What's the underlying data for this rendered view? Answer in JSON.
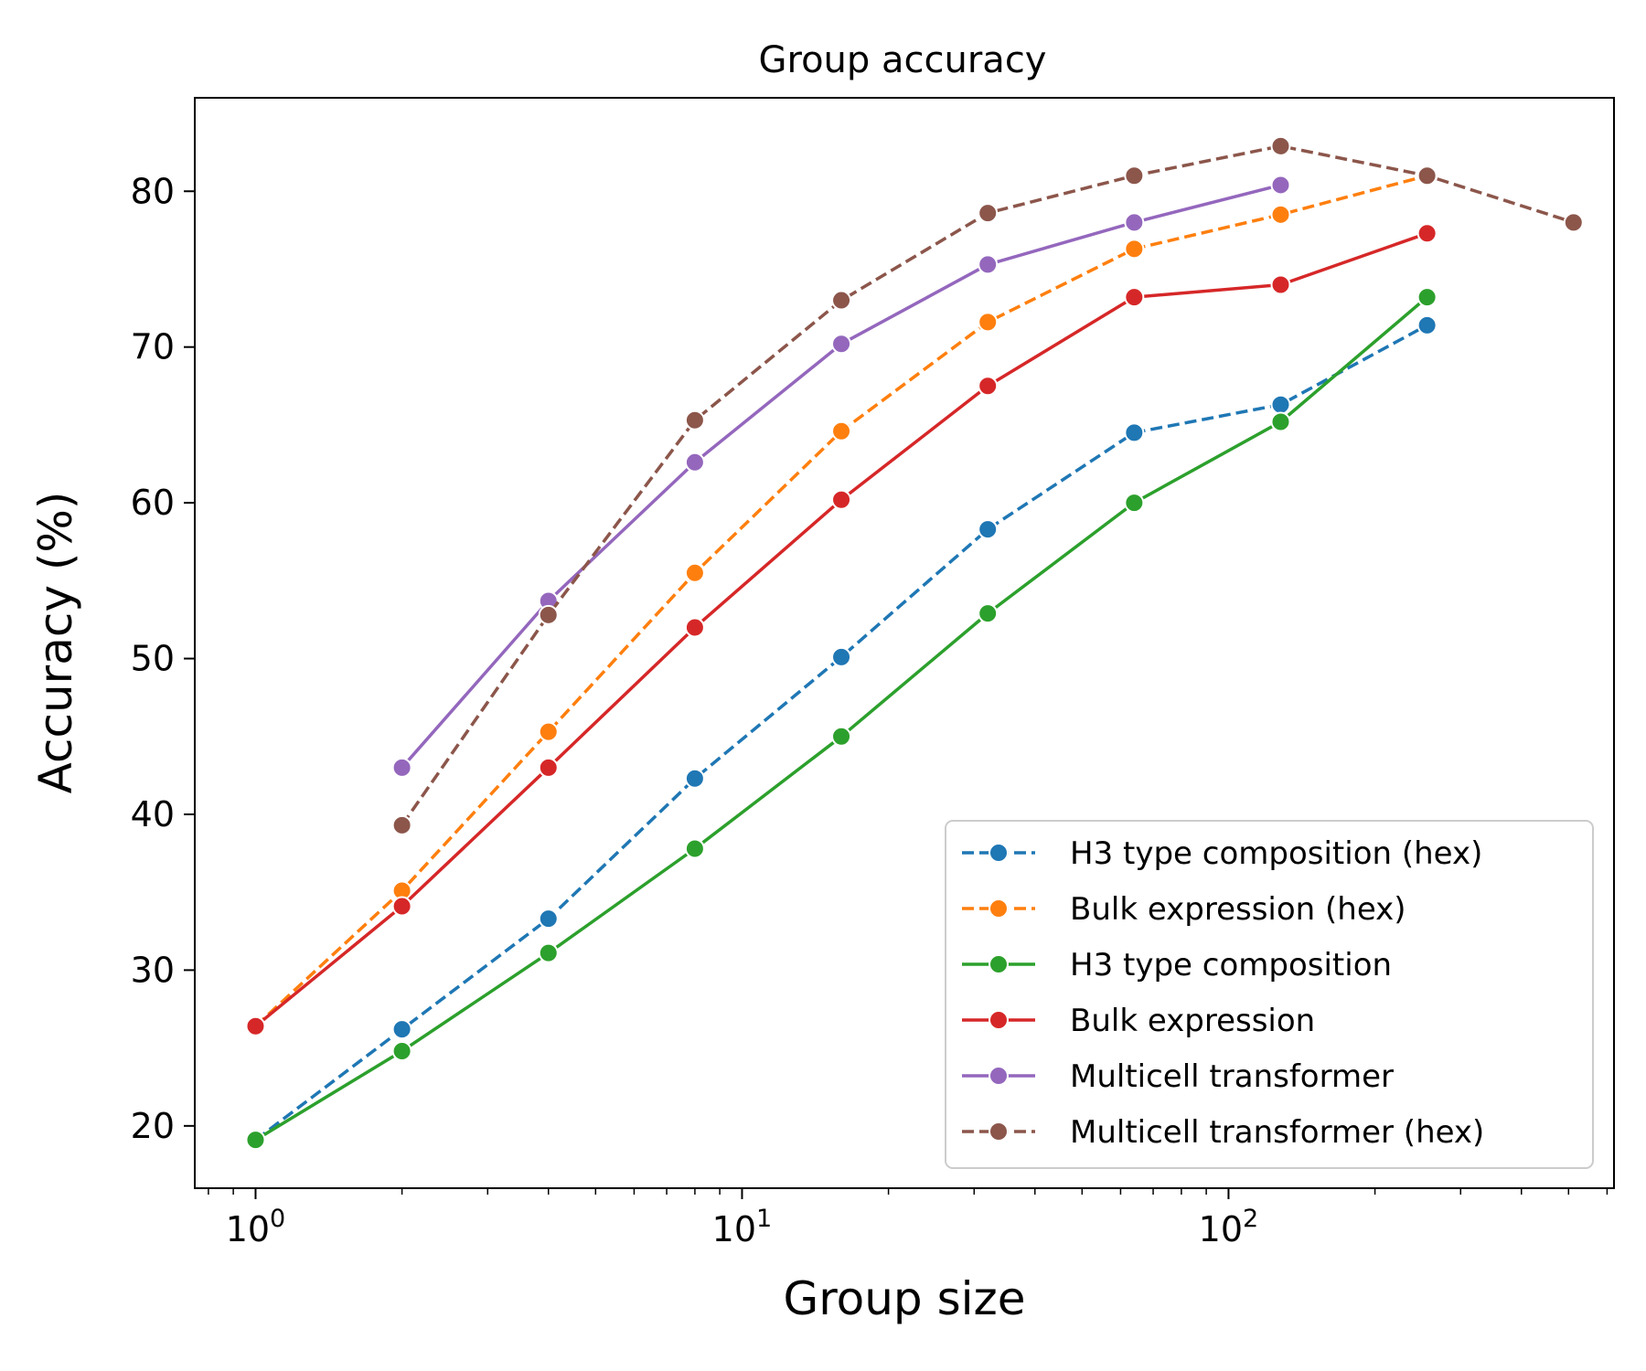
{
  "chart_data": {
    "type": "line",
    "title": "Group accuracy",
    "xlabel": "Group size",
    "ylabel": "Accuracy (%)",
    "xscale": "log",
    "xlim": [
      0.75,
      620
    ],
    "ylim": [
      16,
      86
    ],
    "grid": false,
    "legend_position": "lower-right",
    "x_ticks": [
      {
        "value": 1,
        "base": "10",
        "exp": "0"
      },
      {
        "value": 10,
        "base": "10",
        "exp": "1"
      },
      {
        "value": 100,
        "base": "10",
        "exp": "2"
      }
    ],
    "y_ticks": [
      20,
      30,
      40,
      50,
      60,
      70,
      80
    ],
    "series": [
      {
        "name": "H3 type composition (hex)",
        "color": "#1f77b4",
        "dash": "dashed",
        "x": [
          1,
          2,
          4,
          8,
          16,
          32,
          64,
          128,
          256
        ],
        "y": [
          19.1,
          26.2,
          33.3,
          42.3,
          50.1,
          58.3,
          64.5,
          66.3,
          71.4
        ]
      },
      {
        "name": "Bulk expression (hex)",
        "color": "#ff7f0e",
        "dash": "dashed",
        "x": [
          1,
          2,
          4,
          8,
          16,
          32,
          64,
          128,
          256
        ],
        "y": [
          26.4,
          35.1,
          45.3,
          55.5,
          64.6,
          71.6,
          76.3,
          78.5,
          81.0
        ]
      },
      {
        "name": "H3 type composition",
        "color": "#2ca02c",
        "dash": "solid",
        "x": [
          1,
          2,
          4,
          8,
          16,
          32,
          64,
          128,
          256
        ],
        "y": [
          19.1,
          24.8,
          31.1,
          37.8,
          45.0,
          52.9,
          60.0,
          65.2,
          73.2
        ]
      },
      {
        "name": "Bulk expression",
        "color": "#d62728",
        "dash": "solid",
        "x": [
          1,
          2,
          4,
          8,
          16,
          32,
          64,
          128,
          256
        ],
        "y": [
          26.4,
          34.1,
          43.0,
          52.0,
          60.2,
          67.5,
          73.2,
          74.0,
          77.3
        ]
      },
      {
        "name": "Multicell transformer",
        "color": "#9467bd",
        "dash": "solid",
        "x": [
          2,
          4,
          8,
          16,
          32,
          64,
          128
        ],
        "y": [
          43.0,
          53.7,
          62.6,
          70.2,
          75.3,
          78.0,
          80.4
        ]
      },
      {
        "name": "Multicell transformer (hex)",
        "color": "#8c564b",
        "dash": "dashed",
        "x": [
          2,
          4,
          8,
          16,
          32,
          64,
          128,
          256,
          512
        ],
        "y": [
          39.3,
          52.8,
          65.3,
          73.0,
          78.6,
          81.0,
          82.9,
          81.0,
          78.0
        ]
      }
    ]
  }
}
